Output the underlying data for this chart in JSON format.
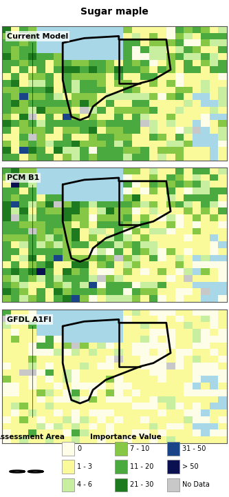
{
  "title": "Sugar maple",
  "panel_labels": [
    "Current Model",
    "PCM B1",
    "GFDL A1FI"
  ],
  "legend_title": "Importance Value",
  "legend_area_label": "Assessment Area",
  "colors": {
    "value_0": "#FEFEE8",
    "value_1_3": "#FAFA9A",
    "value_4_6": "#C8EEA0",
    "value_7_10": "#86C846",
    "value_11_20": "#4AAA40",
    "value_21_30": "#1E7A1E",
    "value_31_50": "#1A4488",
    "value_gt50": "#0A1050",
    "no_data": "#C8C8C8",
    "water": "#A8D8E8",
    "border": "#000000",
    "background": "#FFFFFF",
    "panel_border": "#888888"
  },
  "legend_entries": [
    {
      "label": "0",
      "color": "#FEFEE8"
    },
    {
      "label": "1 - 3",
      "color": "#FAFA9A"
    },
    {
      "label": "4 - 6",
      "color": "#C8EEA0"
    },
    {
      "label": "7 - 10",
      "color": "#86C846"
    },
    {
      "label": "11 - 20",
      "color": "#4AAA40"
    },
    {
      "label": "21 - 30",
      "color": "#1E7A1E"
    },
    {
      "label": "31 - 50",
      "color": "#1A4488"
    },
    {
      "label": "> 50",
      "color": "#0A1050"
    },
    {
      "label": "No Data",
      "color": "#C8C8C8"
    }
  ],
  "grid_rows": 20,
  "grid_cols": 26,
  "title_fontsize": 10,
  "label_fontsize": 8,
  "legend_fontsize": 7.5
}
